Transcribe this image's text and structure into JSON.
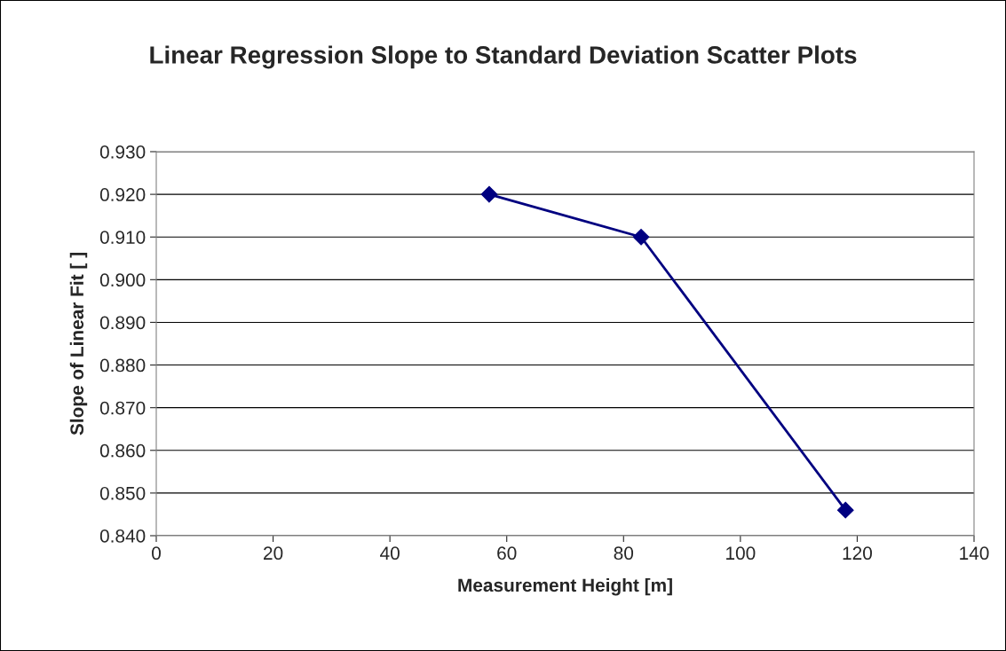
{
  "chart_data": {
    "type": "line",
    "title": "Linear Regression Slope to Standard Deviation Scatter Plots",
    "xlabel": "Measurement Height [m]",
    "ylabel": "Slope of Linear Fit [ ]",
    "series": [
      {
        "color": "#000080",
        "x": [
          57,
          83,
          118
        ],
        "values": [
          0.92,
          0.91,
          0.846
        ]
      }
    ],
    "xlim": [
      0,
      140
    ],
    "xticks": [
      0,
      20,
      40,
      60,
      80,
      100,
      120,
      140
    ],
    "ylim": [
      0.84,
      0.93
    ],
    "yticks": [
      {
        "value": 0.84,
        "label": "0.840"
      },
      {
        "value": 0.85,
        "label": "0.850"
      },
      {
        "value": 0.86,
        "label": "0.860"
      },
      {
        "value": 0.87,
        "label": "0.870"
      },
      {
        "value": 0.88,
        "label": "0.880"
      },
      {
        "value": 0.89,
        "label": "0.890"
      },
      {
        "value": 0.9,
        "label": "0.900"
      },
      {
        "value": 0.91,
        "label": "0.910"
      },
      {
        "value": 0.92,
        "label": "0.920"
      },
      {
        "value": 0.93,
        "label": "0.930"
      }
    ],
    "grid": "y",
    "marker": "diamond",
    "line_style": "solid"
  }
}
